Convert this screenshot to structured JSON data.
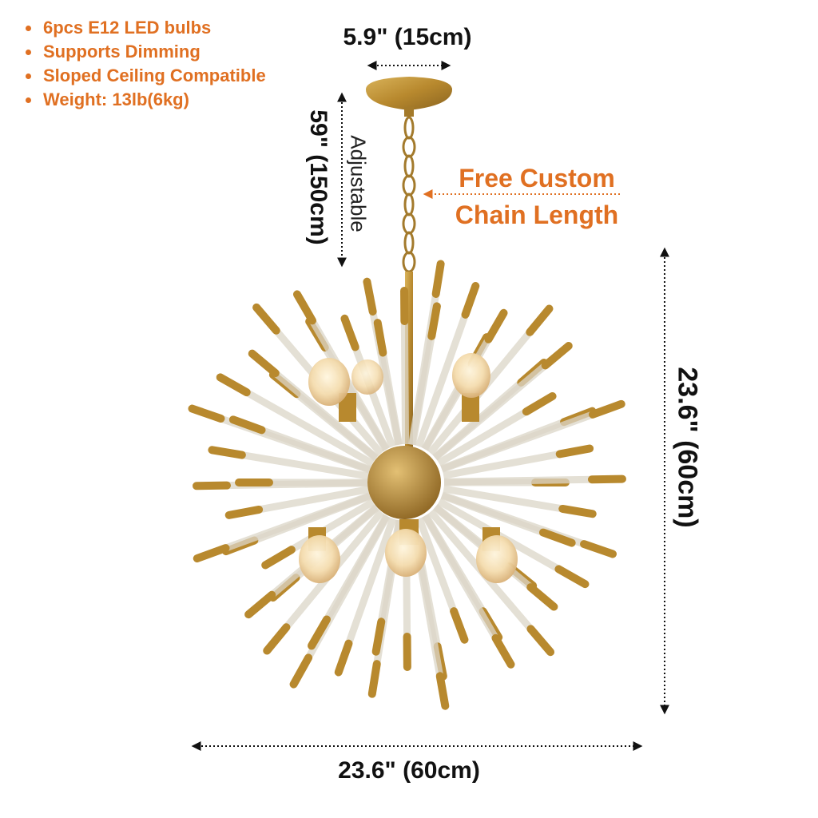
{
  "features": [
    "6pcs E12 LED bulbs",
    "Supports Dimming",
    "Sloped Ceiling Compatible",
    "Weight: 13lb(6kg)"
  ],
  "dimensions": {
    "canopy_width": "5.9\" (15cm)",
    "chain_length": "59\" (150cm)",
    "adjustable_label": "Adjustable",
    "height": "23.6\" (60cm)",
    "width": "23.6\" (60cm)"
  },
  "callout": {
    "line1": "Free Custom",
    "line2": "Chain Length"
  },
  "colors": {
    "accent": "#e07022",
    "brass": "#b8892e",
    "dimension_line": "#111111"
  },
  "icons": [
    "bullet-dot-icon",
    "chandelier-illustration",
    "dimension-arrow-icon"
  ]
}
